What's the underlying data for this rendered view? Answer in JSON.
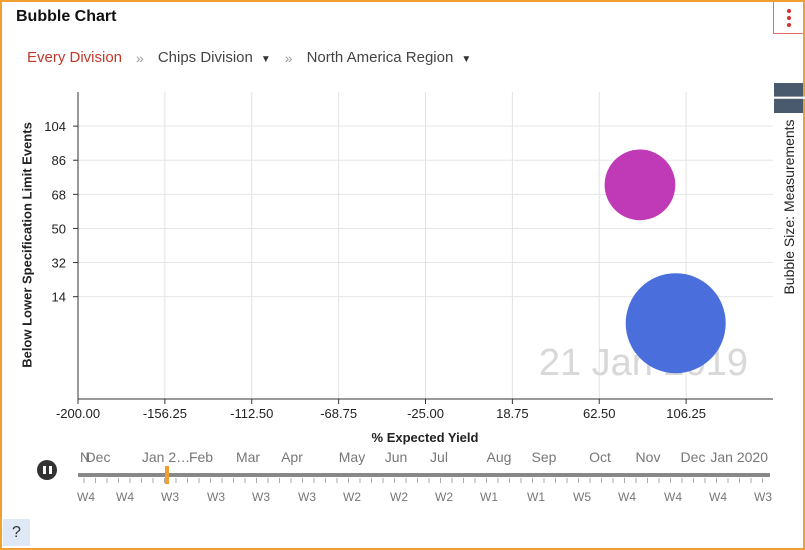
{
  "header": {
    "title": "Bubble Chart",
    "menu_icon": "kebab-menu-icon"
  },
  "breadcrumb": {
    "root": "Every Division",
    "separator": "»",
    "items": [
      {
        "label": "Chips Division"
      },
      {
        "label": "North America Region"
      }
    ]
  },
  "side_panel": {
    "label": "Bubble Size: Measurements",
    "toggle_icon": "arrow-left-icon"
  },
  "watermark": "21 Jan 2019",
  "chart_data": {
    "type": "scatter",
    "xlabel": "% Expected Yield",
    "ylabel": "Below Lower Specification Limit Events",
    "size_label": "Bubble Size: Measurements",
    "xlim": [
      -200,
      150
    ],
    "ylim": [
      -40,
      122
    ],
    "x_ticks": [
      "-200.00",
      "-156.25",
      "-112.50",
      "-68.75",
      "-25.00",
      "18.75",
      "62.50",
      "106.25"
    ],
    "y_ticks": [
      "14",
      "32",
      "50",
      "68",
      "86",
      "104"
    ],
    "points": [
      {
        "x": 83,
        "y": 73,
        "size": 0.5,
        "color": "#c03ab8"
      },
      {
        "x": 101,
        "y": 0,
        "size": 1.0,
        "color": "#4a6fdc"
      }
    ]
  },
  "timeline": {
    "play_state": "paused",
    "months": [
      "N",
      "Dec",
      "Jan 2…",
      "Feb",
      "Mar",
      "Apr",
      "May",
      "Jun",
      "Jul",
      "Aug",
      "Sep",
      "Oct",
      "Nov",
      "Dec",
      "Jan 2020"
    ],
    "weeks": [
      "W4",
      "W4",
      "W3",
      "W3",
      "W3",
      "W3",
      "W2",
      "W2",
      "W2",
      "W1",
      "W1",
      "W5",
      "W4",
      "W4",
      "W4",
      "W3"
    ],
    "current": "21 Jan 2019",
    "marker_color": "#f0a030"
  },
  "help": {
    "label": "?"
  }
}
